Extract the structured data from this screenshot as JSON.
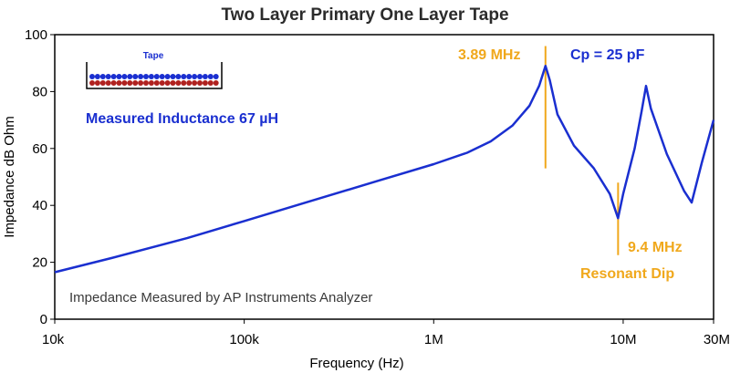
{
  "chart_data": {
    "type": "line",
    "title": "Two Layer Primary One Layer Tape",
    "xlabel": "Frequency (Hz)",
    "ylabel": "Impedance dB Ohm",
    "xscale": "log",
    "xlim": [
      10000,
      30000000
    ],
    "ylim": [
      0,
      100
    ],
    "grid": false,
    "x_ticks": [
      {
        "value": 10000,
        "label": "10k"
      },
      {
        "value": 100000,
        "label": "100k"
      },
      {
        "value": 1000000,
        "label": "1M"
      },
      {
        "value": 10000000,
        "label": "10M"
      },
      {
        "value": 30000000,
        "label": "30M"
      }
    ],
    "y_ticks": [
      0,
      20,
      40,
      60,
      80,
      100
    ],
    "line_color": "#1a2fd0",
    "marker_color": "#f0a81c",
    "series": [
      {
        "x": [
          10000,
          20000,
          50000,
          100000,
          200000,
          500000,
          1000000,
          1500000,
          2000000,
          2600000,
          3200000,
          3600000,
          3890000,
          4100000,
          4500000,
          5500000,
          7000000,
          8500000,
          9400000,
          10000000,
          11500000,
          12500000,
          13200000,
          14000000,
          17000000,
          21000000,
          23000000,
          26000000,
          30000000
        ],
        "y": [
          16.5,
          21.5,
          28.5,
          34.5,
          40.5,
          48.5,
          54.5,
          58.5,
          62.5,
          68,
          75,
          82,
          89,
          84,
          72,
          61,
          53,
          44,
          35.5,
          44,
          60,
          73,
          82,
          74,
          58,
          45,
          41,
          55,
          70
        ]
      }
    ],
    "annotations": {
      "peak_freq": "3.89 MHz",
      "capacitance": "Cp = 25 pF",
      "inductance": "Measured Inductance 67 µH",
      "dip_freq": "9.4 MHz",
      "dip_label": "Resonant Dip",
      "inset_label": "Tape",
      "footer": "Impedance Measured by AP Instruments Analyzer"
    },
    "marker_lines": [
      {
        "x": 3890000,
        "y_from": 53,
        "y_to": 96
      },
      {
        "x": 9400000,
        "y_from": 22.5,
        "y_to": 48
      }
    ]
  }
}
